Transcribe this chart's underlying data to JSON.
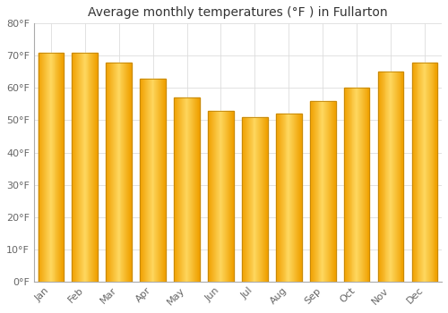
{
  "title": "Average monthly temperatures (°F ) in Fullarton",
  "months": [
    "Jan",
    "Feb",
    "Mar",
    "Apr",
    "May",
    "Jun",
    "Jul",
    "Aug",
    "Sep",
    "Oct",
    "Nov",
    "Dec"
  ],
  "values": [
    71,
    71,
    68,
    63,
    57,
    53,
    51,
    52,
    56,
    60,
    65,
    68
  ],
  "bar_color_left": "#F5A800",
  "bar_color_center": "#FFD966",
  "bar_color_right": "#E09000",
  "bar_edge_color": "#B8860B",
  "ylim": [
    0,
    80
  ],
  "yticks": [
    0,
    10,
    20,
    30,
    40,
    50,
    60,
    70,
    80
  ],
  "ytick_labels": [
    "0°F",
    "10°F",
    "20°F",
    "30°F",
    "40°F",
    "50°F",
    "60°F",
    "70°F",
    "80°F"
  ],
  "background_color": "#FFFFFF",
  "plot_bg_color": "#FFFFFF",
  "grid_color": "#DDDDDD",
  "title_fontsize": 10,
  "tick_fontsize": 8,
  "bar_width": 0.75
}
